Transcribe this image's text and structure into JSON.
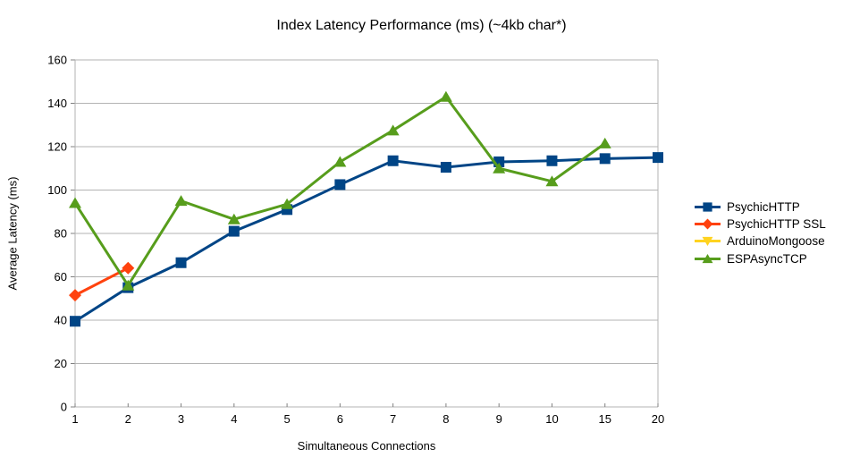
{
  "chart_data": {
    "type": "line",
    "title": "Index Latency Performance (ms) (~4kb char*)",
    "xlabel": "Simultaneous Connections",
    "ylabel": "Average Latency (ms)",
    "categories": [
      "1",
      "2",
      "3",
      "4",
      "5",
      "6",
      "7",
      "8",
      "9",
      "10",
      "15",
      "20"
    ],
    "ylim": [
      0,
      160
    ],
    "ytick_step": 20,
    "grid": "horizontal",
    "legend_position": "right",
    "colors": {
      "grid": "#b3b3b3",
      "tick": "#808080",
      "text": "#000000"
    },
    "series": [
      {
        "name": "PsychicHTTP",
        "color": "#004586",
        "marker": "square",
        "values": [
          39.5,
          55,
          66.5,
          81,
          91,
          102.5,
          113.5,
          110.5,
          113,
          113.5,
          114.5,
          115
        ]
      },
      {
        "name": "PsychicHTTP SSL",
        "color": "#FF420E",
        "marker": "diamond",
        "values": [
          51.5,
          64,
          null,
          null,
          null,
          null,
          null,
          null,
          null,
          null,
          null,
          null
        ]
      },
      {
        "name": "ArduinoMongoose",
        "color": "#FFD320",
        "marker": "triangle-down",
        "values": [
          null,
          null,
          null,
          null,
          null,
          null,
          null,
          null,
          null,
          null,
          null,
          null
        ]
      },
      {
        "name": "ESPAsyncTCP",
        "color": "#579D1C",
        "marker": "triangle-up",
        "values": [
          94,
          56,
          95,
          86.5,
          93.5,
          113,
          127.5,
          143,
          110,
          104,
          121.5,
          null
        ]
      }
    ]
  }
}
